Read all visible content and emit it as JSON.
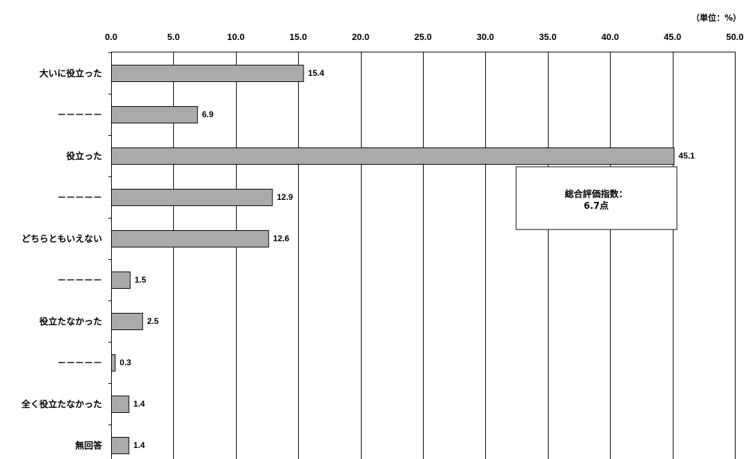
{
  "chart_data": {
    "type": "bar",
    "orientation": "horizontal",
    "unit_label": "（単位：%）",
    "categories": [
      "大いに役立った",
      "－－－－－",
      "役立った",
      "－－－－－",
      "どちらともいえない",
      "－－－－－",
      "役立たなかった",
      "－－－－－",
      "全く役立たなかった",
      "無回答"
    ],
    "values": [
      15.4,
      6.9,
      45.1,
      12.9,
      12.6,
      1.5,
      2.5,
      0.3,
      1.4,
      1.4
    ],
    "value_labels": [
      "15.4",
      "6.9",
      "45.1",
      "12.9",
      "12.6",
      "1.5",
      "2.5",
      "0.3",
      "1.4",
      "1.4"
    ],
    "xlim": [
      0,
      50
    ],
    "x_ticks": [
      "0.0",
      "5.0",
      "10.0",
      "15.0",
      "20.0",
      "25.0",
      "30.0",
      "35.0",
      "40.0",
      "45.0",
      "50.0"
    ],
    "x_tick_values": [
      0,
      5,
      10,
      15,
      20,
      25,
      30,
      35,
      40,
      45,
      50
    ],
    "grid": true,
    "bar_color": "#aaaaaa",
    "annotation": {
      "line1": "総合評価指数：",
      "line2": "6.7点"
    }
  }
}
